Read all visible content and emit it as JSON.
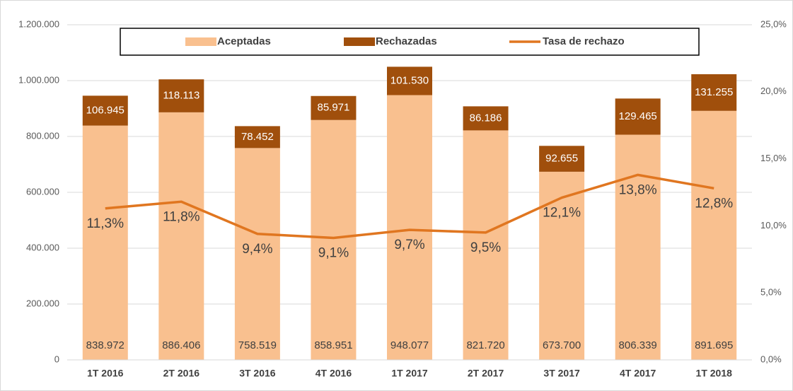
{
  "chart_data": {
    "type": "bar_line",
    "categories": [
      "1T 2016",
      "2T 2016",
      "3T 2016",
      "4T 2016",
      "1T 2017",
      "2T 2017",
      "3T 2017",
      "4T 2017",
      "1T 2018"
    ],
    "series": [
      {
        "name": "Aceptadas",
        "color": "#f9c08f",
        "type": "bar",
        "stack": true,
        "values": [
          838972,
          886406,
          758519,
          858951,
          948077,
          821720,
          673700,
          806339,
          891695
        ],
        "value_labels": [
          "838.972",
          "886.406",
          "758.519",
          "858.951",
          "948.077",
          "821.720",
          "673.700",
          "806.339",
          "891.695"
        ]
      },
      {
        "name": "Rechazadas",
        "color": "#a04f0c",
        "type": "bar",
        "stack": true,
        "values": [
          106945,
          118113,
          78452,
          85971,
          101530,
          86186,
          92655,
          129465,
          131255
        ],
        "value_labels": [
          "106.945",
          "118.113",
          "78.452",
          "85.971",
          "101.530",
          "86.186",
          "92.655",
          "129.465",
          "131.255"
        ]
      },
      {
        "name": "Tasa de rechazo",
        "color": "#e07620",
        "type": "line",
        "axis": "y2",
        "values": [
          11.3,
          11.8,
          9.4,
          9.1,
          9.7,
          9.5,
          12.1,
          13.8,
          12.8
        ],
        "value_labels": [
          "11,3%",
          "11,8%",
          "9,4%",
          "9,1%",
          "9,7%",
          "9,5%",
          "12,1%",
          "13,8%",
          "12,8%"
        ]
      }
    ],
    "ylim": [
      0,
      1200000
    ],
    "yticks": [
      0,
      {
        "value": 200000,
        "label": "200.000"
      },
      {
        "value": 400000,
        "label": "400.000"
      },
      {
        "value": 600000,
        "label": "600.000"
      },
      {
        "value": 800000,
        "label": "800.000"
      },
      {
        "value": 1000000,
        "label": "1.000.000"
      },
      {
        "value": 1200000,
        "label": "1.200.000"
      }
    ],
    "y2lim": [
      0,
      25
    ],
    "y2ticks": [
      {
        "value": 0,
        "label": "0,0%"
      },
      {
        "value": 5,
        "label": "5,0%"
      },
      {
        "value": 10,
        "label": "10,0%"
      },
      {
        "value": 15,
        "label": "15,0%"
      },
      {
        "value": 20,
        "label": "20,0%"
      },
      {
        "value": 25,
        "label": "25,0%"
      }
    ],
    "grid": true,
    "legend": "top"
  }
}
